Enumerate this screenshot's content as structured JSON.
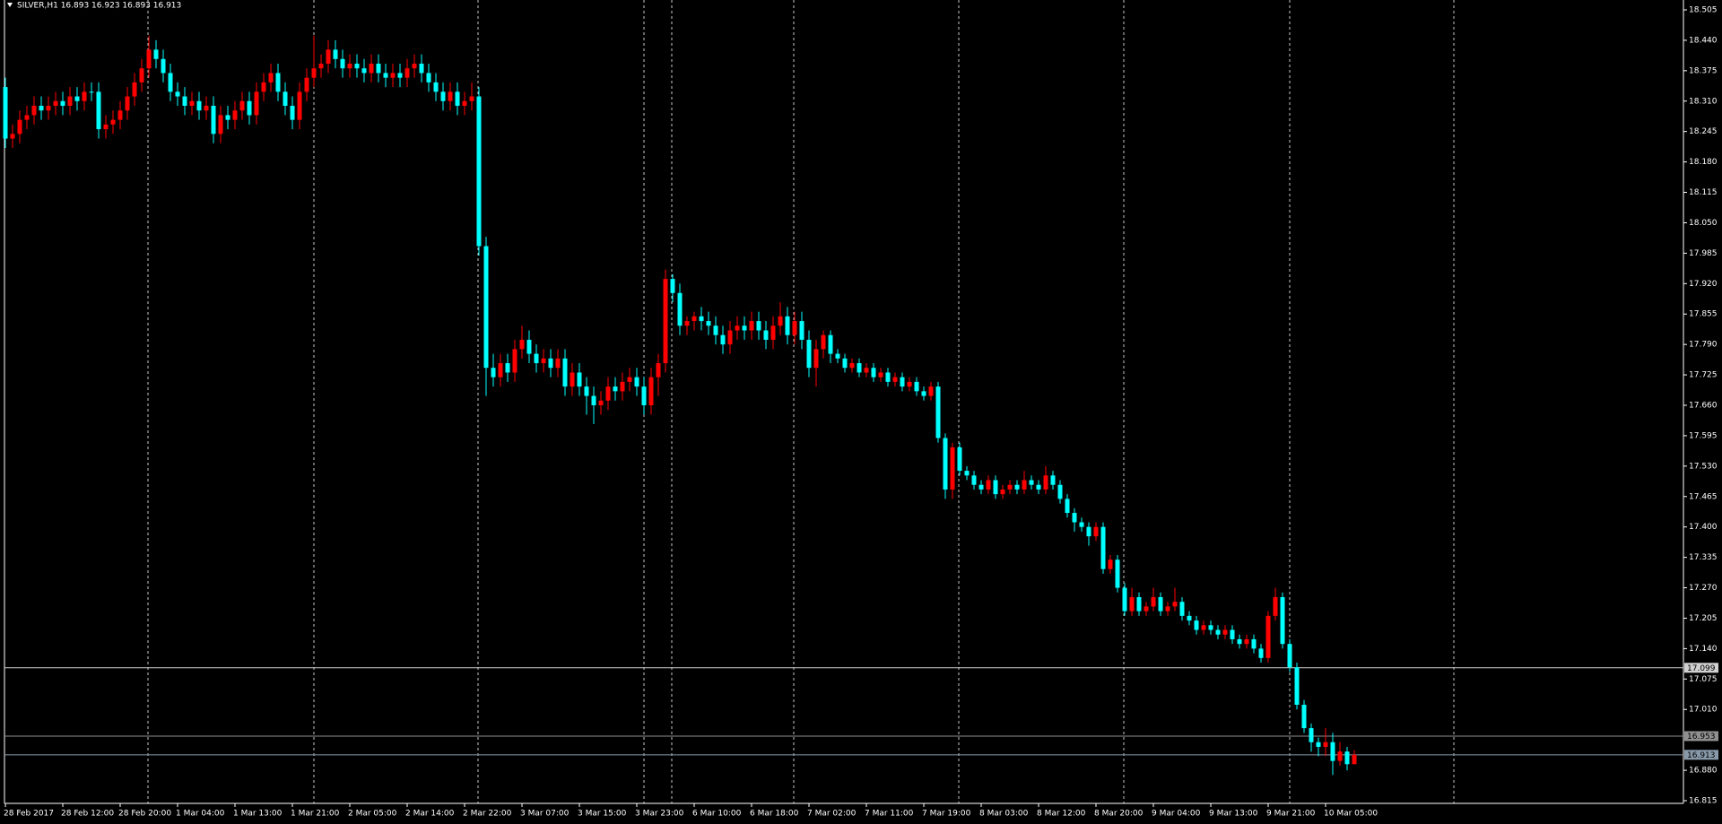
{
  "chart_data": {
    "type": "candlestick",
    "title": "SILVER,H1  16.893 16.923 16.893 16.913",
    "up_color": "#ff0000",
    "down_color": "#00ffff",
    "ylim": [
      16.815,
      18.505
    ],
    "yticks": [
      18.505,
      {
        "value": 18.44,
        "label": "18.440"
      },
      18.375,
      {
        "value": 18.31,
        "label": "18.310"
      },
      18.245,
      {
        "value": 18.18,
        "label": "18.180"
      },
      18.115,
      {
        "value": 18.05,
        "label": "18.050"
      },
      17.985,
      {
        "value": 17.92,
        "label": "17.920"
      },
      17.855,
      {
        "value": 17.79,
        "label": "17.790"
      },
      17.725,
      {
        "value": 17.66,
        "label": "17.660"
      },
      17.595,
      {
        "value": 17.53,
        "label": "17.530"
      },
      17.465,
      {
        "value": 17.4,
        "label": "17.400"
      },
      17.335,
      {
        "value": 17.27,
        "label": "17.270"
      },
      17.205,
      {
        "value": 17.14,
        "label": "17.140"
      },
      17.075,
      {
        "value": 17.01,
        "label": "17.010"
      },
      {
        "value": 16.88,
        "label": "16.880"
      },
      16.815
    ],
    "hlines": [
      {
        "value": 17.099,
        "color": "#d0d0d0"
      },
      {
        "value": 16.953,
        "color": "#909090"
      },
      {
        "value": 16.913,
        "color": "#8899aa"
      }
    ],
    "categories": [
      "28 Feb 2017",
      null,
      null,
      null,
      null,
      null,
      null,
      null,
      "28 Feb 12:00",
      null,
      null,
      null,
      null,
      null,
      null,
      null,
      "28 Feb 20:00",
      null,
      null,
      null,
      null,
      null,
      null,
      null,
      "1 Mar 04:00",
      null,
      null,
      null,
      null,
      null,
      null,
      null,
      "1 Mar 13:00",
      null,
      null,
      null,
      null,
      null,
      null,
      null,
      "1 Mar 21:00",
      null,
      null,
      null,
      null,
      null,
      null,
      null,
      "2 Mar 05:00",
      null,
      null,
      null,
      null,
      null,
      null,
      null,
      "2 Mar 14:00",
      null,
      null,
      null,
      null,
      null,
      null,
      null,
      "2 Mar 22:00",
      null,
      null,
      null,
      null,
      null,
      null,
      null,
      "3 Mar 07:00",
      null,
      null,
      null,
      null,
      null,
      null,
      null,
      "3 Mar 15:00",
      null,
      null,
      null,
      null,
      null,
      null,
      null,
      "3 Mar 23:00",
      null,
      null,
      null,
      null,
      null,
      null,
      null,
      "6 Mar 10:00",
      null,
      null,
      null,
      null,
      null,
      null,
      null,
      "6 Mar 18:00",
      null,
      null,
      null,
      null,
      null,
      null,
      null,
      "7 Mar 02:00",
      null,
      null,
      null,
      null,
      null,
      null,
      null,
      "7 Mar 11:00",
      null,
      null,
      null,
      null,
      null,
      null,
      null,
      "7 Mar 19:00",
      null,
      null,
      null,
      null,
      null,
      null,
      null,
      "8 Mar 03:00",
      null,
      null,
      null,
      null,
      null,
      null,
      null,
      "8 Mar 12:00",
      null,
      null,
      null,
      null,
      null,
      null,
      null,
      "8 Mar 20:00",
      null,
      null,
      null,
      null,
      null,
      null,
      null,
      "9 Mar 04:00",
      null,
      null,
      null,
      null,
      null,
      null,
      null,
      "9 Mar 13:00",
      null,
      null,
      null,
      null,
      null,
      null,
      null,
      "9 Mar 21:00",
      null,
      null,
      null,
      null,
      null,
      null,
      null,
      "10 Mar 05:00",
      null,
      null,
      null,
      null
    ],
    "open": [
      18.34,
      18.23,
      18.24,
      18.27,
      18.28,
      18.3,
      18.29,
      18.3,
      18.31,
      18.3,
      18.32,
      18.31,
      18.33,
      18.33,
      18.25,
      18.26,
      18.27,
      18.29,
      18.32,
      18.35,
      18.38,
      18.42,
      18.4,
      18.37,
      18.33,
      18.32,
      18.3,
      18.31,
      18.29,
      18.3,
      18.24,
      18.28,
      18.27,
      18.29,
      18.31,
      18.28,
      18.33,
      18.35,
      18.37,
      18.33,
      18.3,
      18.27,
      18.33,
      18.36,
      18.38,
      18.39,
      18.42,
      18.4,
      18.38,
      18.39,
      18.38,
      18.37,
      18.39,
      18.37,
      18.36,
      18.37,
      18.36,
      18.38,
      18.39,
      18.37,
      18.35,
      18.33,
      18.31,
      18.33,
      18.3,
      18.31,
      18.32,
      18.0,
      17.74,
      17.72,
      17.75,
      17.73,
      17.78,
      17.8,
      17.77,
      17.75,
      17.76,
      17.74,
      17.76,
      17.7,
      17.73,
      17.7,
      17.68,
      17.66,
      17.67,
      17.7,
      17.69,
      17.71,
      17.72,
      17.7,
      17.66,
      17.72,
      17.75,
      17.93,
      17.9,
      17.83,
      17.84,
      17.85,
      17.84,
      17.83,
      17.81,
      17.79,
      17.82,
      17.83,
      17.82,
      17.84,
      17.82,
      17.8,
      17.83,
      17.85,
      17.81,
      17.84,
      17.8,
      17.74,
      17.78,
      17.81,
      17.77,
      17.76,
      17.74,
      17.75,
      17.73,
      17.74,
      17.72,
      17.73,
      17.71,
      17.72,
      17.7,
      17.71,
      17.69,
      17.68,
      17.7,
      17.59,
      17.48,
      17.57,
      17.52,
      17.51,
      17.49,
      17.48,
      17.5,
      17.47,
      17.48,
      17.49,
      17.48,
      17.5,
      17.49,
      17.48,
      17.51,
      17.49,
      17.46,
      17.43,
      17.41,
      17.4,
      17.38,
      17.4,
      17.31,
      17.33,
      17.27,
      17.22,
      17.25,
      17.22,
      17.23,
      17.25,
      17.22,
      17.23,
      17.24,
      17.21,
      17.2,
      17.18,
      17.19,
      17.18,
      17.17,
      17.18,
      17.16,
      17.15,
      17.16,
      17.14,
      17.12,
      17.21,
      17.25,
      17.15,
      17.1,
      17.02,
      16.97,
      16.94,
      16.93,
      16.94,
      16.9,
      16.92,
      16.893
    ],
    "high": [
      18.36,
      18.26,
      18.29,
      18.3,
      18.32,
      18.32,
      18.32,
      18.33,
      18.33,
      18.34,
      18.34,
      18.35,
      18.35,
      18.35,
      18.28,
      18.29,
      18.31,
      18.34,
      18.37,
      18.4,
      18.45,
      18.44,
      18.42,
      18.39,
      18.35,
      18.34,
      18.33,
      18.33,
      18.32,
      18.32,
      18.3,
      18.3,
      18.31,
      18.33,
      18.33,
      18.35,
      18.37,
      18.39,
      18.39,
      18.35,
      18.32,
      18.35,
      18.38,
      18.45,
      18.41,
      18.44,
      18.44,
      18.42,
      18.41,
      18.41,
      18.4,
      18.41,
      18.41,
      18.39,
      18.39,
      18.39,
      18.4,
      18.41,
      18.41,
      18.39,
      18.37,
      18.35,
      18.35,
      18.35,
      18.33,
      18.35,
      18.34,
      18.02,
      17.77,
      17.77,
      17.77,
      17.8,
      17.83,
      17.82,
      17.79,
      17.78,
      17.78,
      17.78,
      17.78,
      17.75,
      17.75,
      17.72,
      17.7,
      17.69,
      17.72,
      17.72,
      17.73,
      17.74,
      17.74,
      17.72,
      17.74,
      17.77,
      17.95,
      17.94,
      17.92,
      17.85,
      17.86,
      17.87,
      17.86,
      17.85,
      17.83,
      17.84,
      17.85,
      17.85,
      17.86,
      17.86,
      17.84,
      17.85,
      17.88,
      17.87,
      17.86,
      17.86,
      17.82,
      17.8,
      17.82,
      17.82,
      17.78,
      17.77,
      17.76,
      17.76,
      17.75,
      17.75,
      17.74,
      17.74,
      17.73,
      17.73,
      17.72,
      17.72,
      17.7,
      17.71,
      17.71,
      17.6,
      17.58,
      17.58,
      17.53,
      17.52,
      17.5,
      17.51,
      17.51,
      17.49,
      17.5,
      17.5,
      17.52,
      17.51,
      17.5,
      17.53,
      17.52,
      17.5,
      17.47,
      17.44,
      17.42,
      17.41,
      17.41,
      17.41,
      17.34,
      17.34,
      17.28,
      17.27,
      17.26,
      17.24,
      17.27,
      17.26,
      17.24,
      17.27,
      17.25,
      17.22,
      17.21,
      17.2,
      17.2,
      17.19,
      17.19,
      17.19,
      17.17,
      17.17,
      17.17,
      17.15,
      17.22,
      17.27,
      17.26,
      17.16,
      17.11,
      17.03,
      16.98,
      16.95,
      16.97,
      16.96,
      16.94,
      16.93,
      16.923
    ],
    "low": [
      18.21,
      18.21,
      18.22,
      18.25,
      18.26,
      18.27,
      18.27,
      18.28,
      18.28,
      18.28,
      18.29,
      18.29,
      18.31,
      18.23,
      18.23,
      18.24,
      18.25,
      18.27,
      18.3,
      18.33,
      18.36,
      18.38,
      18.35,
      18.31,
      18.3,
      18.28,
      18.28,
      18.27,
      18.27,
      18.22,
      18.22,
      18.25,
      18.25,
      18.27,
      18.26,
      18.26,
      18.31,
      18.33,
      18.31,
      18.28,
      18.25,
      18.25,
      18.31,
      18.34,
      18.36,
      18.37,
      18.38,
      18.36,
      18.36,
      18.36,
      18.35,
      18.35,
      18.35,
      18.34,
      18.34,
      18.34,
      18.34,
      18.36,
      18.35,
      18.33,
      18.31,
      18.29,
      18.29,
      18.28,
      18.28,
      18.29,
      17.98,
      17.68,
      17.7,
      17.7,
      17.71,
      17.71,
      17.76,
      17.75,
      17.73,
      17.73,
      17.72,
      17.72,
      17.68,
      17.68,
      17.68,
      17.64,
      17.62,
      17.64,
      17.65,
      17.67,
      17.67,
      17.69,
      17.68,
      17.64,
      17.64,
      17.68,
      17.73,
      17.88,
      17.81,
      17.81,
      17.82,
      17.82,
      17.81,
      17.79,
      17.77,
      17.77,
      17.8,
      17.8,
      17.8,
      17.8,
      17.78,
      17.78,
      17.81,
      17.79,
      17.79,
      17.78,
      17.72,
      17.7,
      17.76,
      17.75,
      17.75,
      17.73,
      17.73,
      17.72,
      17.72,
      17.71,
      17.71,
      17.7,
      17.7,
      17.69,
      17.69,
      17.68,
      17.67,
      17.67,
      17.58,
      17.46,
      17.46,
      17.51,
      17.5,
      17.48,
      17.47,
      17.47,
      17.46,
      17.46,
      17.47,
      17.47,
      17.47,
      17.48,
      17.47,
      17.47,
      17.48,
      17.45,
      17.42,
      17.39,
      17.39,
      17.36,
      17.37,
      17.3,
      17.3,
      17.26,
      17.21,
      17.21,
      17.21,
      17.21,
      17.22,
      17.21,
      17.21,
      17.22,
      17.2,
      17.19,
      17.17,
      17.17,
      17.17,
      17.16,
      17.16,
      17.15,
      17.14,
      17.14,
      17.13,
      17.11,
      17.11,
      17.2,
      17.14,
      17.09,
      17.01,
      16.96,
      16.92,
      16.91,
      16.91,
      16.87,
      16.89,
      16.88,
      16.893
    ],
    "close": [
      18.23,
      18.24,
      18.27,
      18.28,
      18.3,
      18.29,
      18.3,
      18.31,
      18.3,
      18.32,
      18.31,
      18.33,
      18.33,
      18.25,
      18.26,
      18.27,
      18.29,
      18.32,
      18.35,
      18.38,
      18.42,
      18.4,
      18.37,
      18.33,
      18.32,
      18.3,
      18.31,
      18.29,
      18.3,
      18.24,
      18.28,
      18.27,
      18.29,
      18.31,
      18.28,
      18.33,
      18.35,
      18.37,
      18.33,
      18.3,
      18.27,
      18.33,
      18.36,
      18.38,
      18.39,
      18.42,
      18.4,
      18.38,
      18.39,
      18.38,
      18.37,
      18.39,
      18.37,
      18.36,
      18.37,
      18.36,
      18.38,
      18.39,
      18.37,
      18.35,
      18.33,
      18.31,
      18.33,
      18.3,
      18.31,
      18.32,
      18.0,
      17.74,
      17.72,
      17.75,
      17.73,
      17.78,
      17.8,
      17.77,
      17.75,
      17.76,
      17.74,
      17.76,
      17.7,
      17.73,
      17.7,
      17.68,
      17.66,
      17.67,
      17.7,
      17.69,
      17.71,
      17.72,
      17.7,
      17.66,
      17.72,
      17.75,
      17.93,
      17.9,
      17.83,
      17.84,
      17.85,
      17.84,
      17.83,
      17.81,
      17.79,
      17.82,
      17.83,
      17.82,
      17.84,
      17.82,
      17.8,
      17.83,
      17.85,
      17.81,
      17.84,
      17.8,
      17.74,
      17.78,
      17.81,
      17.77,
      17.76,
      17.74,
      17.75,
      17.73,
      17.74,
      17.72,
      17.73,
      17.71,
      17.72,
      17.7,
      17.71,
      17.69,
      17.68,
      17.7,
      17.59,
      17.48,
      17.57,
      17.52,
      17.51,
      17.49,
      17.48,
      17.5,
      17.47,
      17.48,
      17.49,
      17.48,
      17.5,
      17.49,
      17.48,
      17.51,
      17.49,
      17.46,
      17.43,
      17.41,
      17.4,
      17.38,
      17.4,
      17.31,
      17.33,
      17.27,
      17.22,
      17.25,
      17.22,
      17.23,
      17.25,
      17.22,
      17.23,
      17.24,
      17.21,
      17.2,
      17.18,
      17.19,
      17.18,
      17.17,
      17.18,
      17.16,
      17.15,
      17.16,
      17.14,
      17.12,
      17.21,
      17.25,
      17.15,
      17.1,
      17.02,
      16.97,
      16.94,
      16.93,
      16.94,
      16.9,
      16.92,
      16.893,
      16.913
    ]
  }
}
